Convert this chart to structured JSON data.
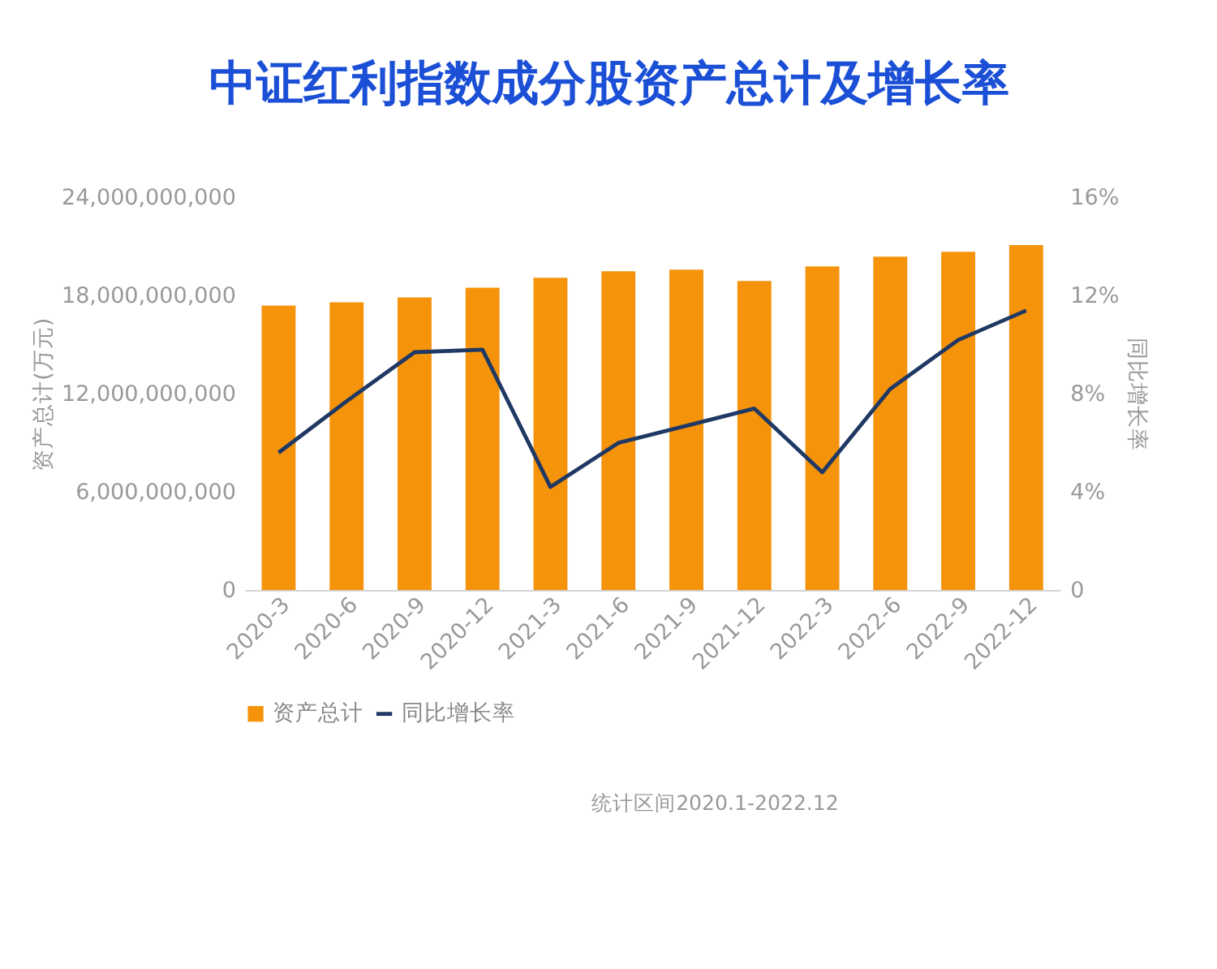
{
  "chart_data": {
    "type": "bar",
    "title": "中证红利指数成分股资产总计及增长率",
    "ylabel": "资产总计(万元)",
    "y2label": "同比增长率",
    "categories": [
      "2020-3",
      "2020-6",
      "2020-9",
      "2020-12",
      "2021-3",
      "2021-6",
      "2021-9",
      "2021-12",
      "2022-3",
      "2022-6",
      "2022-9",
      "2022-12"
    ],
    "series": [
      {
        "name": "资产总计",
        "color": "#f5930b",
        "values": [
          17400000000,
          17600000000,
          17900000000,
          18500000000,
          19100000000,
          19500000000,
          19600000000,
          18900000000,
          19800000000,
          20400000000,
          20700000000,
          21100000000
        ]
      },
      {
        "name": "同比增长率",
        "type": "line",
        "axis": "y2",
        "color": "#1f3864",
        "values": [
          5.6,
          7.7,
          9.7,
          9.8,
          4.2,
          6.0,
          6.7,
          7.4,
          4.8,
          8.2,
          10.2,
          11.4
        ]
      }
    ],
    "ylim": [
      0,
      24000000000
    ],
    "yticks": [
      0,
      {
        "value": 6000000000,
        "label": "6,000,000,000"
      },
      {
        "value": 12000000000,
        "label": "12,000,000,000"
      },
      {
        "value": 18000000000,
        "label": "18,000,000,000"
      },
      {
        "value": 24000000000,
        "label": "24,000,000,000"
      }
    ],
    "y2lim": [
      0,
      16
    ],
    "y2ticks": [
      {
        "value": 0,
        "label": "0"
      },
      {
        "value": 4,
        "label": "4%"
      },
      {
        "value": 8,
        "label": "8%"
      },
      {
        "value": 12,
        "label": "12%"
      },
      {
        "value": 16,
        "label": "16%"
      }
    ],
    "grid": false,
    "legend": "bottom",
    "marker": "none",
    "line_style": "solid",
    "annotations": [
      "统计区间2020.1-2022.12"
    ]
  }
}
